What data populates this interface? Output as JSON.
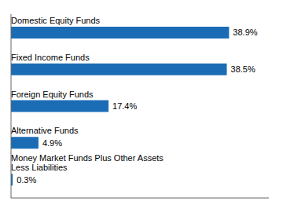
{
  "chart_data": {
    "type": "bar",
    "orientation": "horizontal",
    "categories": [
      "Money Market Funds Plus Other Assets\nLess Liabilities",
      "Alternative Funds",
      "Foreign Equity Funds",
      "Fixed Income Funds",
      "Domestic Equity Funds"
    ],
    "values": [
      0.3,
      4.9,
      17.4,
      38.5,
      38.9
    ],
    "value_labels": [
      "0.3%",
      "4.9%",
      "17.4%",
      "38.5%",
      "38.9%"
    ],
    "color": "#1a6db5",
    "xlim": [
      0,
      46
    ],
    "data_labels": true,
    "tick_labels": false
  }
}
